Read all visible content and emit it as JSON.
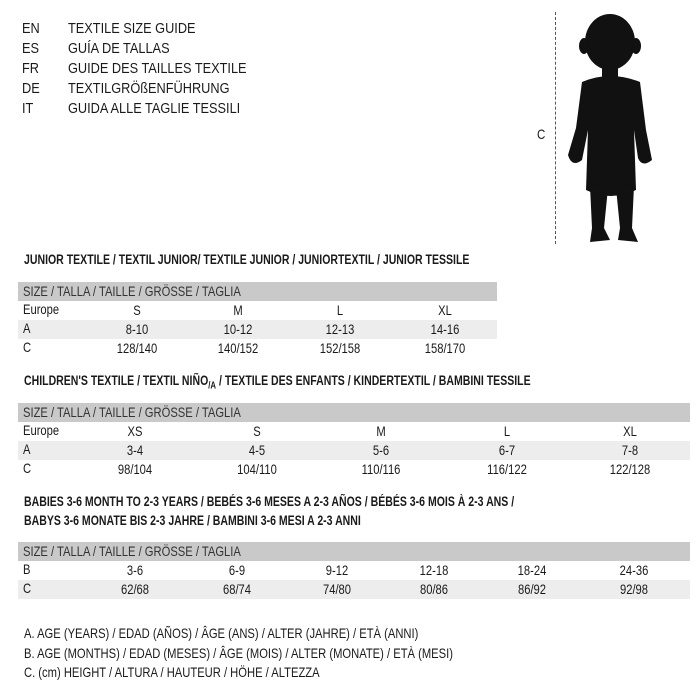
{
  "languages": [
    {
      "code": "EN",
      "title": "TEXTILE SIZE GUIDE"
    },
    {
      "code": "ES",
      "title": "GUÍA DE TALLAS"
    },
    {
      "code": "FR",
      "title": "GUIDE DES TAILLES TEXTILE"
    },
    {
      "code": "DE",
      "title": "TEXTILGRÖßENFÜHRUNG"
    },
    {
      "code": "IT",
      "title": "GUIDA ALLE TAGLIE TESSILI"
    }
  ],
  "figure": {
    "measure_label": "C",
    "icon": "baby-silhouette"
  },
  "colors": {
    "header_bg": "#c9c9c9",
    "row_shade": "#ededed"
  },
  "junior": {
    "title": "JUNIOR TEXTILE / TEXTIL JUNIOR/ TEXTILE JUNIOR / JUNIORTEXTIL / JUNIOR TESSILE",
    "header": "SIZE / TALLA / TAILLE / GRÖSSE / TAGLIA",
    "rows": [
      {
        "label": "Europe",
        "values": [
          "S",
          "M",
          "L",
          "XL"
        ]
      },
      {
        "label": "A",
        "values": [
          "8-10",
          "10-12",
          "12-13",
          "14-16"
        ]
      },
      {
        "label": "C",
        "values": [
          "128/140",
          "140/152",
          "152/158",
          "158/170"
        ]
      }
    ]
  },
  "children": {
    "title": "CHILDREN'S TEXTILE / TEXTIL NIÑO/A / TEXTILE DES ENFANTS / KINDERTEXTIL / BAMBINI TESSILE",
    "header": "SIZE / TALLA / TAILLE / GRÖSSE / TAGLIA",
    "rows": [
      {
        "label": "Europe",
        "values": [
          "XS",
          "S",
          "M",
          "L",
          "XL"
        ]
      },
      {
        "label": "A",
        "values": [
          "3-4",
          "4-5",
          "5-6",
          "6-7",
          "7-8"
        ]
      },
      {
        "label": "C",
        "values": [
          "98/104",
          "104/110",
          "110/116",
          "116/122",
          "122/128"
        ]
      }
    ]
  },
  "babies": {
    "title_line1": "BABIES 3-6 MONTH TO 2-3 YEARS / BEBÉS 3-6 MESES A 2-3 AÑOS / BÉBÉS 3-6 MOIS À 2-3 ANS /",
    "title_line2": "BABYS 3-6 MONATE BIS 2-3 JAHRE / BAMBINI 3-6 MESI A 2-3 ANNI",
    "header": "SIZE / TALLA / TAILLE / GRÖSSE / TAGLIA",
    "rows": [
      {
        "label": "B",
        "values": [
          "3-6",
          "6-9",
          "9-12",
          "12-18",
          "18-24",
          "24-36"
        ]
      },
      {
        "label": "C",
        "values": [
          "62/68",
          "68/74",
          "74/80",
          "80/86",
          "86/92",
          "92/98"
        ]
      }
    ]
  },
  "legend": [
    "A. AGE (YEARS) / EDAD (AÑOS) / ÂGE (ANS) / ALTER (JAHRE) / ETÀ (ANNI)",
    "B. AGE (MONTHS) / EDAD (MESES) / ÂGE (MOIS) / ALTER (MONATE) / ETÀ (MESI)",
    "C. (cm) HEIGHT / ALTURA / HAUTEUR / HÖHE / ALTEZZA"
  ]
}
